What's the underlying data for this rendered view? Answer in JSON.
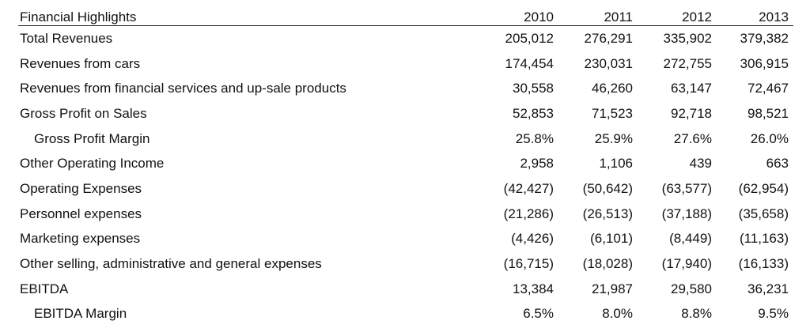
{
  "table": {
    "title": "Financial Highlights",
    "years": [
      "2010",
      "2011",
      "2012",
      "2013"
    ],
    "rows": [
      {
        "label": "Total Revenues",
        "indent": false,
        "values": [
          "205,012",
          "276,291",
          "335,902",
          "379,382"
        ]
      },
      {
        "label": "Revenues from cars",
        "indent": false,
        "values": [
          "174,454",
          "230,031",
          "272,755",
          "306,915"
        ]
      },
      {
        "label": "Revenues from financial services and up-sale products",
        "indent": false,
        "values": [
          "30,558",
          "46,260",
          "63,147",
          "72,467"
        ]
      },
      {
        "label": "Gross Profit on Sales",
        "indent": false,
        "values": [
          "52,853",
          "71,523",
          "92,718",
          "98,521"
        ]
      },
      {
        "label": "Gross Profit Margin",
        "indent": true,
        "values": [
          "25.8%",
          "25.9%",
          "27.6%",
          "26.0%"
        ]
      },
      {
        "label": "Other Operating Income",
        "indent": false,
        "values": [
          "2,958",
          "1,106",
          "439",
          "663"
        ]
      },
      {
        "label": "Operating Expenses",
        "indent": false,
        "values": [
          "(42,427)",
          "(50,642)",
          "(63,577)",
          "(62,954)"
        ]
      },
      {
        "label": "Personnel expenses",
        "indent": false,
        "values": [
          "(21,286)",
          "(26,513)",
          "(37,188)",
          "(35,658)"
        ]
      },
      {
        "label": "Marketing expenses",
        "indent": false,
        "values": [
          "(4,426)",
          "(6,101)",
          "(8,449)",
          "(11,163)"
        ]
      },
      {
        "label": "Other selling, administrative and general expenses",
        "indent": false,
        "values": [
          "(16,715)",
          "(18,028)",
          "(17,940)",
          "(16,133)"
        ]
      },
      {
        "label": "EBITDA",
        "indent": false,
        "values": [
          "13,384",
          "21,987",
          "29,580",
          "36,231"
        ]
      },
      {
        "label": "EBITDA Margin",
        "indent": true,
        "values": [
          "6.5%",
          "8.0%",
          "8.8%",
          "9.5%"
        ]
      }
    ]
  }
}
